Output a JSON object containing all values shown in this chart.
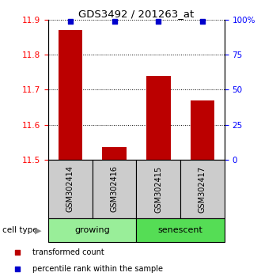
{
  "title": "GDS3492 / 201263_at",
  "samples": [
    "GSM302414",
    "GSM302416",
    "GSM302415",
    "GSM302417"
  ],
  "bar_values": [
    11.87,
    11.535,
    11.74,
    11.67
  ],
  "bar_color": "#bb0000",
  "percentile_values": [
    99,
    99,
    99,
    99
  ],
  "percentile_color": "#0000cc",
  "ylim_left": [
    11.5,
    11.9
  ],
  "ylim_right": [
    0,
    100
  ],
  "yticks_left": [
    11.5,
    11.6,
    11.7,
    11.8,
    11.9
  ],
  "yticks_right": [
    0,
    25,
    50,
    75,
    100
  ],
  "ytick_labels_right": [
    "0",
    "25",
    "50",
    "75",
    "100%"
  ],
  "groups": [
    {
      "label": "growing",
      "samples": [
        0,
        1
      ],
      "color": "#99ee99"
    },
    {
      "label": "senescent",
      "samples": [
        2,
        3
      ],
      "color": "#55dd55"
    }
  ],
  "group_label": "cell type",
  "legend_items": [
    {
      "label": "transformed count",
      "color": "#bb0000",
      "marker": "s"
    },
    {
      "label": "percentile rank within the sample",
      "color": "#0000cc",
      "marker": "s"
    }
  ],
  "bar_width": 0.55,
  "label_box_color": "#cccccc"
}
